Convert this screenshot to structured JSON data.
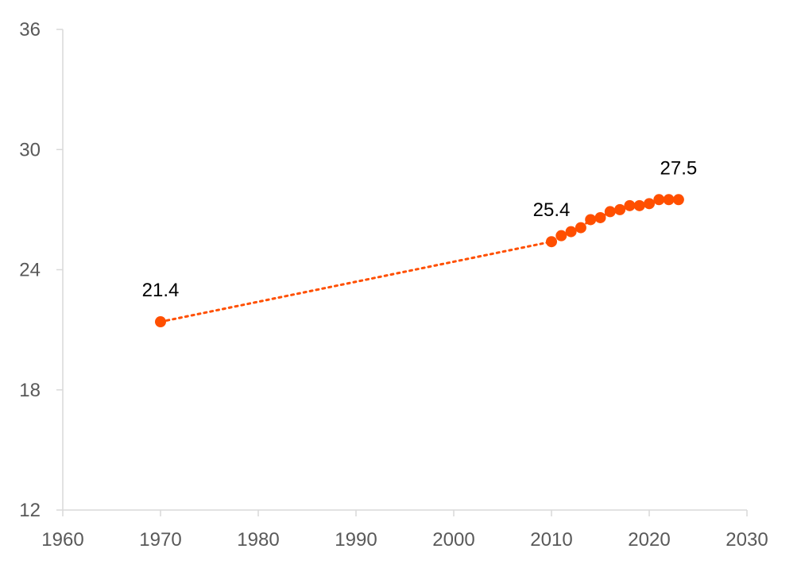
{
  "chart_data": {
    "type": "line",
    "title": "",
    "xlabel": "",
    "ylabel": "",
    "xlim": [
      1960,
      2030
    ],
    "ylim": [
      12,
      36
    ],
    "x_ticks": [
      1960,
      1970,
      1980,
      1990,
      2000,
      2010,
      2020,
      2030
    ],
    "y_ticks": [
      12,
      18,
      24,
      30,
      36
    ],
    "grid": false,
    "legend": "none",
    "line_style": "dotted",
    "color": "#ff4f00",
    "series": [
      {
        "x": [
          1970,
          2010,
          2011,
          2012,
          2013,
          2014,
          2015,
          2016,
          2017,
          2018,
          2019,
          2020,
          2021,
          2022,
          2023
        ],
        "y": [
          21.4,
          25.4,
          25.7,
          25.9,
          26.1,
          26.5,
          26.6,
          26.9,
          27.0,
          27.2,
          27.2,
          27.3,
          27.5,
          27.5,
          27.5
        ]
      }
    ],
    "data_labels": [
      {
        "x": 1970,
        "y": 21.4,
        "text": "21.4"
      },
      {
        "x": 2010,
        "y": 25.4,
        "text": "25.4"
      },
      {
        "x": 2023,
        "y": 27.5,
        "text": "27.5"
      }
    ]
  }
}
